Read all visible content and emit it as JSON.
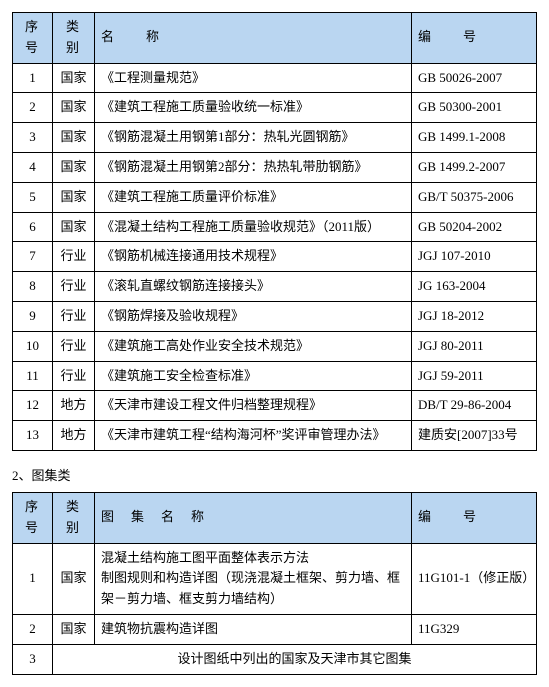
{
  "table1": {
    "headers": {
      "seq": "序号",
      "cat": "类别",
      "name": "名　　称",
      "code": "编　　号"
    },
    "rows": [
      {
        "seq": "1",
        "cat": "国家",
        "name": "《工程测量规范》",
        "code": "GB 50026-2007"
      },
      {
        "seq": "2",
        "cat": "国家",
        "name": "《建筑工程施工质量验收统一标准》",
        "code": "GB 50300-2001"
      },
      {
        "seq": "3",
        "cat": "国家",
        "name": "《钢筋混凝土用钢第1部分：热轧光圆钢筋》",
        "code": "GB 1499.1-2008"
      },
      {
        "seq": "4",
        "cat": "国家",
        "name": "《钢筋混凝土用钢第2部分：热热轧带肋钢筋》",
        "code": "GB 1499.2-2007"
      },
      {
        "seq": "5",
        "cat": "国家",
        "name": "《建筑工程施工质量评价标准》",
        "code": "GB/T 50375-2006"
      },
      {
        "seq": "6",
        "cat": "国家",
        "name": "《混凝土结构工程施工质量验收规范》（2011版）",
        "code": "GB 50204-2002"
      },
      {
        "seq": "7",
        "cat": "行业",
        "name": "《钢筋机械连接通用技术规程》",
        "code": "JGJ 107-2010"
      },
      {
        "seq": "8",
        "cat": "行业",
        "name": "《滚轧直螺纹钢筋连接接头》",
        "code": "JG 163-2004"
      },
      {
        "seq": "9",
        "cat": "行业",
        "name": "《钢筋焊接及验收规程》",
        "code": "JGJ 18-2012"
      },
      {
        "seq": "10",
        "cat": "行业",
        "name": "《建筑施工高处作业安全技术规范》",
        "code": "JGJ 80-2011"
      },
      {
        "seq": "11",
        "cat": "行业",
        "name": "《建筑施工安全检查标准》",
        "code": "JGJ 59-2011"
      },
      {
        "seq": "12",
        "cat": "地方",
        "name": "《天津市建设工程文件归档整理规程》",
        "code": "DB/T 29-86-2004"
      },
      {
        "seq": "13",
        "cat": "地方",
        "name": "《天津市建筑工程“结构海河杯”奖评审管理办法》",
        "code": "建质安[2007]33号"
      }
    ]
  },
  "sectionLabel": "2、图集类",
  "table2": {
    "headers": {
      "seq": "序号",
      "cat": "类别",
      "name": "图　集　名　称",
      "code": "编　　号"
    },
    "rows": [
      {
        "seq": "1",
        "cat": "国家",
        "name": "混凝土结构施工图平面整体表示方法\n制图规则和构造详图（现浇混凝土框架、剪力墙、框架－剪力墙、框支剪力墙结构）",
        "code": "11G101-1（修正版）"
      },
      {
        "seq": "2",
        "cat": "国家",
        "name": "建筑物抗震构造详图",
        "code": "11G329"
      }
    ],
    "mergedRow": {
      "seq": "3",
      "text": "设计图纸中列出的国家及天津市其它图集"
    }
  }
}
